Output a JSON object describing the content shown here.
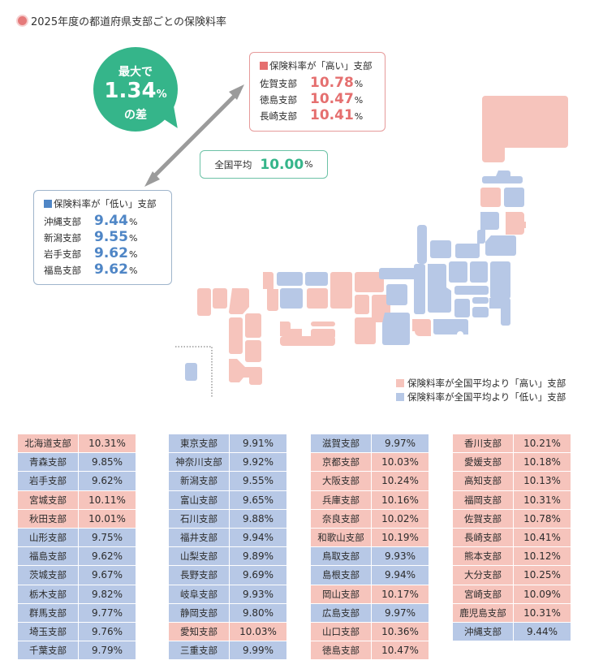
{
  "title": "2025年度の都道府県支部ごとの保険料率",
  "bubble": {
    "line1": "最大で",
    "value": "1.34",
    "unit": "%",
    "line3": "の差"
  },
  "high_box": {
    "heading": "保険料率が「高い」支部",
    "rows": [
      {
        "name": "佐賀支部",
        "value": "10.78",
        "unit": "%"
      },
      {
        "name": "徳島支部",
        "value": "10.47",
        "unit": "%"
      },
      {
        "name": "長崎支部",
        "value": "10.41",
        "unit": "%"
      }
    ]
  },
  "low_box": {
    "heading": "保険料率が「低い」支部",
    "rows": [
      {
        "name": "沖縄支部",
        "value": "9.44",
        "unit": "%"
      },
      {
        "name": "新潟支部",
        "value": "9.55",
        "unit": "%"
      },
      {
        "name": "岩手支部",
        "value": "9.62",
        "unit": "%"
      },
      {
        "name": "福島支部",
        "value": "9.62",
        "unit": "%"
      }
    ]
  },
  "average": {
    "label": "全国平均",
    "value": "10.00",
    "unit": "%"
  },
  "legend": {
    "high": "保険料率が全国平均より「高い」支部",
    "low": "保険料率が全国平均より「低い」支部"
  },
  "colors": {
    "high": "#f6c4bc",
    "low": "#b7c8e6",
    "accent": "#35b58a",
    "high_text": "#e56f6f",
    "low_text": "#4f86c6"
  },
  "chart_data": {
    "type": "table",
    "title": "2025年度の都道府県支部ごとの保険料率",
    "national_average": 10.0,
    "max_difference": 1.34,
    "columns": [
      [
        {
          "name": "北海道支部",
          "value": "10.31%",
          "level": "high"
        },
        {
          "name": "青森支部",
          "value": "9.85%",
          "level": "low"
        },
        {
          "name": "岩手支部",
          "value": "9.62%",
          "level": "low"
        },
        {
          "name": "宮城支部",
          "value": "10.11%",
          "level": "high"
        },
        {
          "name": "秋田支部",
          "value": "10.01%",
          "level": "high"
        },
        {
          "name": "山形支部",
          "value": "9.75%",
          "level": "low"
        },
        {
          "name": "福島支部",
          "value": "9.62%",
          "level": "low"
        },
        {
          "name": "茨城支部",
          "value": "9.67%",
          "level": "low"
        },
        {
          "name": "栃木支部",
          "value": "9.82%",
          "level": "low"
        },
        {
          "name": "群馬支部",
          "value": "9.77%",
          "level": "low"
        },
        {
          "name": "埼玉支部",
          "value": "9.76%",
          "level": "low"
        },
        {
          "name": "千葉支部",
          "value": "9.79%",
          "level": "low"
        }
      ],
      [
        {
          "name": "東京支部",
          "value": "9.91%",
          "level": "low"
        },
        {
          "name": "神奈川支部",
          "value": "9.92%",
          "level": "low"
        },
        {
          "name": "新潟支部",
          "value": "9.55%",
          "level": "low"
        },
        {
          "name": "富山支部",
          "value": "9.65%",
          "level": "low"
        },
        {
          "name": "石川支部",
          "value": "9.88%",
          "level": "low"
        },
        {
          "name": "福井支部",
          "value": "9.94%",
          "level": "low"
        },
        {
          "name": "山梨支部",
          "value": "9.89%",
          "level": "low"
        },
        {
          "name": "長野支部",
          "value": "9.69%",
          "level": "low"
        },
        {
          "name": "岐阜支部",
          "value": "9.93%",
          "level": "low"
        },
        {
          "name": "静岡支部",
          "value": "9.80%",
          "level": "low"
        },
        {
          "name": "愛知支部",
          "value": "10.03%",
          "level": "high"
        },
        {
          "name": "三重支部",
          "value": "9.99%",
          "level": "low"
        }
      ],
      [
        {
          "name": "滋賀支部",
          "value": "9.97%",
          "level": "low"
        },
        {
          "name": "京都支部",
          "value": "10.03%",
          "level": "high"
        },
        {
          "name": "大阪支部",
          "value": "10.24%",
          "level": "high"
        },
        {
          "name": "兵庫支部",
          "value": "10.16%",
          "level": "high"
        },
        {
          "name": "奈良支部",
          "value": "10.02%",
          "level": "high"
        },
        {
          "name": "和歌山支部",
          "value": "10.19%",
          "level": "high"
        },
        {
          "name": "鳥取支部",
          "value": "9.93%",
          "level": "low"
        },
        {
          "name": "島根支部",
          "value": "9.94%",
          "level": "low"
        },
        {
          "name": "岡山支部",
          "value": "10.17%",
          "level": "high"
        },
        {
          "name": "広島支部",
          "value": "9.97%",
          "level": "low"
        },
        {
          "name": "山口支部",
          "value": "10.36%",
          "level": "high"
        },
        {
          "name": "徳島支部",
          "value": "10.47%",
          "level": "high"
        }
      ],
      [
        {
          "name": "香川支部",
          "value": "10.21%",
          "level": "high"
        },
        {
          "name": "愛媛支部",
          "value": "10.18%",
          "level": "high"
        },
        {
          "name": "高知支部",
          "value": "10.13%",
          "level": "high"
        },
        {
          "name": "福岡支部",
          "value": "10.31%",
          "level": "high"
        },
        {
          "name": "佐賀支部",
          "value": "10.78%",
          "level": "high"
        },
        {
          "name": "長崎支部",
          "value": "10.41%",
          "level": "high"
        },
        {
          "name": "熊本支部",
          "value": "10.12%",
          "level": "high"
        },
        {
          "name": "大分支部",
          "value": "10.25%",
          "level": "high"
        },
        {
          "name": "宮崎支部",
          "value": "10.09%",
          "level": "high"
        },
        {
          "name": "鹿児島支部",
          "value": "10.31%",
          "level": "high"
        },
        {
          "name": "沖縄支部",
          "value": "9.44%",
          "level": "low"
        }
      ]
    ]
  }
}
